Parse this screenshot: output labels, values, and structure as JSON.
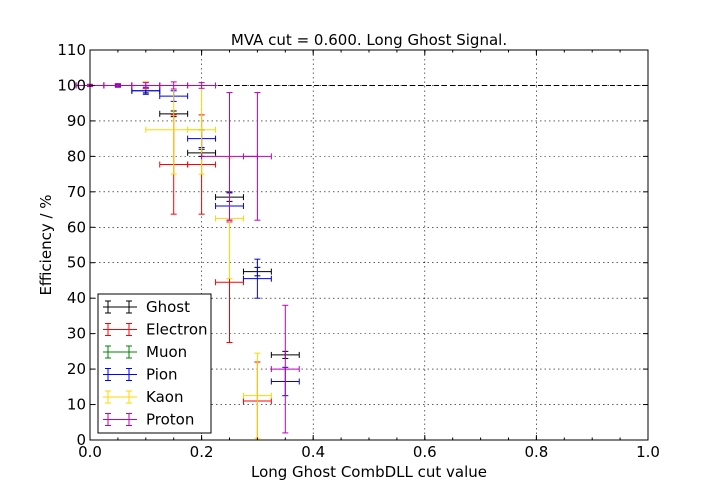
{
  "chart_data": {
    "type": "scatter",
    "title": "MVA cut = 0.600. Long Ghost Signal.",
    "xlabel": "Long Ghost CombDLL cut value",
    "ylabel": "Efficiency / %",
    "xlim": [
      0.0,
      1.0
    ],
    "ylim": [
      0,
      110
    ],
    "x_ticks": [
      "0.0",
      "0.2",
      "0.4",
      "0.6",
      "0.8",
      "1.0"
    ],
    "y_ticks": [
      "0",
      "10",
      "20",
      "30",
      "40",
      "50",
      "60",
      "70",
      "80",
      "90",
      "100",
      "110"
    ],
    "grid": true,
    "reference_line": {
      "y": 100,
      "style": "dashed",
      "color": "#000000"
    },
    "legend_position": "lower-left",
    "series": [
      {
        "name": "Ghost",
        "color": "#000000",
        "points": [
          {
            "x": 0.0,
            "y": 100,
            "xerr": 0.025,
            "yerr": 0.2
          },
          {
            "x": 0.05,
            "y": 100,
            "xerr": 0.025,
            "yerr": 0.3
          },
          {
            "x": 0.1,
            "y": 98.5,
            "xerr": 0.025,
            "yerr": 0.6
          },
          {
            "x": 0.15,
            "y": 92,
            "xerr": 0.025,
            "yerr": 0.8
          },
          {
            "x": 0.2,
            "y": 81,
            "xerr": 0.025,
            "yerr": 1.0
          },
          {
            "x": 0.25,
            "y": 68.5,
            "xerr": 0.025,
            "yerr": 1.2
          },
          {
            "x": 0.3,
            "y": 47.5,
            "xerr": 0.025,
            "yerr": 1.2
          },
          {
            "x": 0.35,
            "y": 24,
            "xerr": 0.025,
            "yerr": 1.0
          }
        ]
      },
      {
        "name": "Electron",
        "color": "#ff0000",
        "points": [
          {
            "x": 0.0,
            "y": 100,
            "xerr": 0.025,
            "yerr": 0.3
          },
          {
            "x": 0.05,
            "y": 100,
            "xerr": 0.025,
            "yerr": 0.5
          },
          {
            "x": 0.1,
            "y": 100,
            "xerr": 0.025,
            "yerr": 1.0
          },
          {
            "x": 0.15,
            "y": 77.7,
            "xerr": 0.025,
            "yerr": 14
          },
          {
            "x": 0.2,
            "y": 77.7,
            "xerr": 0.025,
            "yerr": 14
          },
          {
            "x": 0.25,
            "y": 44.5,
            "xerr": 0.025,
            "yerr": 17
          },
          {
            "x": 0.3,
            "y": 11,
            "xerr": 0.025,
            "yerr": 11
          }
        ]
      },
      {
        "name": "Muon",
        "color": "#008000",
        "points": []
      },
      {
        "name": "Pion",
        "color": "#0000ff",
        "points": [
          {
            "x": 0.0,
            "y": 100,
            "xerr": 0.025,
            "yerr": 0.2
          },
          {
            "x": 0.05,
            "y": 100,
            "xerr": 0.025,
            "yerr": 0.3
          },
          {
            "x": 0.1,
            "y": 98.5,
            "xerr": 0.025,
            "yerr": 1.0
          },
          {
            "x": 0.15,
            "y": 97,
            "xerr": 0.025,
            "yerr": 1.5
          },
          {
            "x": 0.2,
            "y": 85,
            "xerr": 0.025,
            "yerr": 2.5
          },
          {
            "x": 0.25,
            "y": 66,
            "xerr": 0.025,
            "yerr": 4
          },
          {
            "x": 0.3,
            "y": 45.5,
            "xerr": 0.025,
            "yerr": 5.5
          },
          {
            "x": 0.35,
            "y": 16.5,
            "xerr": 0.025,
            "yerr": 4
          }
        ]
      },
      {
        "name": "Kaon",
        "color": "#ffd700",
        "points": [
          {
            "x": 0.0,
            "y": 100,
            "xerr": 0.025,
            "yerr": 0.3
          },
          {
            "x": 0.05,
            "y": 100,
            "xerr": 0.025,
            "yerr": 0.5
          },
          {
            "x": 0.1,
            "y": 100,
            "xerr": 0.025,
            "yerr": 1.0
          },
          {
            "x": 0.15,
            "y": 87.5,
            "xerr": 0.05,
            "yerr": 12.5
          },
          {
            "x": 0.2,
            "y": 87.5,
            "xerr": 0.025,
            "yerr": 12.5
          },
          {
            "x": 0.25,
            "y": 62.5,
            "xerr": 0.025,
            "yerr": 17
          },
          {
            "x": 0.3,
            "y": 12.5,
            "xerr": 0.025,
            "yerr": 12
          }
        ]
      },
      {
        "name": "Proton",
        "color": "#bf00bf",
        "points": [
          {
            "x": 0.0,
            "y": 100,
            "xerr": 0.025,
            "yerr": 0.3
          },
          {
            "x": 0.05,
            "y": 100,
            "xerr": 0.025,
            "yerr": 0.5
          },
          {
            "x": 0.1,
            "y": 100,
            "xerr": 0.025,
            "yerr": 0.8
          },
          {
            "x": 0.15,
            "y": 100,
            "xerr": 0.025,
            "yerr": 1.0
          },
          {
            "x": 0.2,
            "y": 100,
            "xerr": 0.025,
            "yerr": 0.8
          },
          {
            "x": 0.25,
            "y": 80,
            "xerr": 0.05,
            "yerr": 18
          },
          {
            "x": 0.3,
            "y": 80,
            "xerr": 0.025,
            "yerr": 18
          },
          {
            "x": 0.35,
            "y": 20,
            "xerr": 0.025,
            "yerr": 18
          }
        ]
      }
    ]
  }
}
